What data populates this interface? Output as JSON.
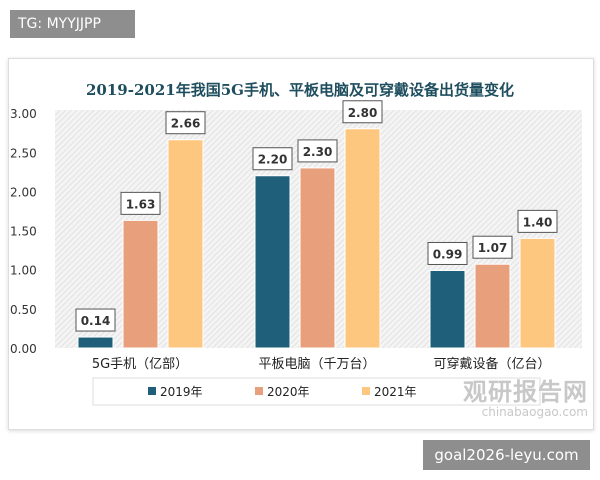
{
  "watermark_top": "TG: MYYJJPP",
  "watermark_bottom": "goal2026-leyu.com",
  "logo": {
    "name": "观研报告网",
    "url": "chinabaogao.com"
  },
  "chart_data": {
    "type": "bar",
    "title": "2019-2021年我国5G手机、平板电脑及可穿戴设备出货量变化",
    "categories": [
      "5G手机（亿部）",
      "平板电脑（千万台）",
      "可穿戴设备（亿台）"
    ],
    "series": [
      {
        "name": "2019年",
        "color": "#1f5f7a",
        "values": [
          0.14,
          2.2,
          0.99
        ]
      },
      {
        "name": "2020年",
        "color": "#e8a07c",
        "values": [
          1.63,
          2.3,
          1.07
        ]
      },
      {
        "name": "2021年",
        "color": "#fdc77f",
        "values": [
          2.66,
          2.8,
          1.4
        ]
      }
    ],
    "data_labels": [
      [
        "0.14",
        "2.20",
        "0.99"
      ],
      [
        "1.63",
        "2.30",
        "1.07"
      ],
      [
        "2.66",
        "2.80",
        "1.40"
      ]
    ],
    "yticks": [
      "0.00",
      "0.50",
      "1.00",
      "1.50",
      "2.00",
      "2.50",
      "3.00"
    ],
    "ylim": [
      0,
      3
    ],
    "grid": false,
    "legend": "bottom"
  }
}
